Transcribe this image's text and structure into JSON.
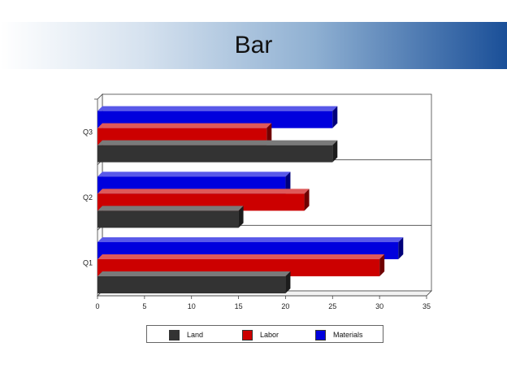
{
  "header": {
    "title": "Bar"
  },
  "chart_data": {
    "type": "bar",
    "orientation": "horizontal",
    "style": "3d",
    "categories": [
      "Q1",
      "Q2",
      "Q3"
    ],
    "series": [
      {
        "name": "Land",
        "color": "#333333",
        "values": [
          20,
          15,
          25
        ]
      },
      {
        "name": "Labor",
        "color": "#cc0000",
        "values": [
          30,
          22,
          18
        ]
      },
      {
        "name": "Materials",
        "color": "#0000dd",
        "values": [
          32,
          20,
          25
        ]
      }
    ],
    "xlim": [
      0,
      35
    ],
    "xticks": [
      "0",
      "5",
      "10",
      "15",
      "20",
      "25",
      "30",
      "35"
    ],
    "grid": false,
    "legend_position": "bottom"
  }
}
